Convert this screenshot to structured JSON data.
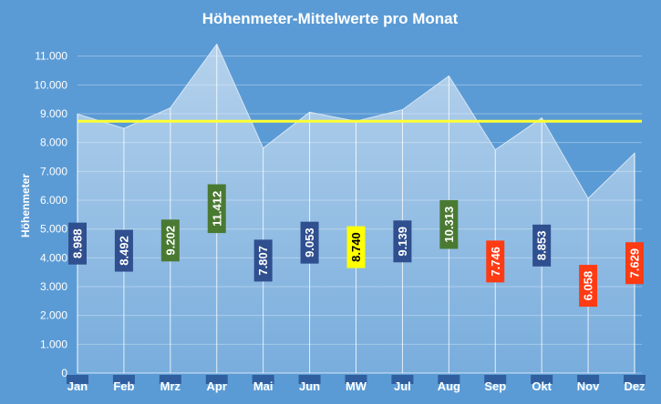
{
  "chart_data": {
    "type": "area",
    "title": "Höhenmeter-Mittelwerte pro Monat",
    "xlabel": "",
    "ylabel": "Höhenmeter",
    "ylim": [
      0,
      12000
    ],
    "yticks": [
      0,
      1000,
      2000,
      3000,
      4000,
      5000,
      6000,
      7000,
      8000,
      9000,
      10000,
      11000
    ],
    "ytick_labels": [
      "0",
      "1.000",
      "2.000",
      "3.000",
      "4.000",
      "5.000",
      "6.000",
      "7.000",
      "8.000",
      "9.000",
      "10.000",
      "11.000"
    ],
    "categories": [
      "Jan",
      "Feb",
      "Mrz",
      "Apr",
      "Mai",
      "Jun",
      "MW",
      "Jul",
      "Aug",
      "Sep",
      "Okt",
      "Nov",
      "Dez"
    ],
    "values": [
      8988,
      8492,
      9202,
      11412,
      7807,
      9053,
      8740,
      9139,
      10313,
      7746,
      8853,
      6058,
      7629
    ],
    "data_labels": [
      "8.988",
      "8.492",
      "9.202",
      "11.412",
      "7.807",
      "9.053",
      "8.740",
      "9.139",
      "10.313",
      "7.746",
      "8.853",
      "6.058",
      "7.629"
    ],
    "label_colors": [
      "#2f4f8f",
      "#2f4f8f",
      "#4a7a32",
      "#4a7a32",
      "#2f4f8f",
      "#2f4f8f",
      "#ffff00",
      "#2f4f8f",
      "#4a7a32",
      "#ff3b14",
      "#2f4f8f",
      "#ff3b14",
      "#ff3b14"
    ],
    "label_text_colors": [
      "#ffffff",
      "#ffffff",
      "#ffffff",
      "#ffffff",
      "#ffffff",
      "#ffffff",
      "#000000",
      "#ffffff",
      "#ffffff",
      "#ffffff",
      "#ffffff",
      "#ffffff",
      "#ffffff"
    ],
    "mean_line_value": 8740,
    "mean_line_color": "#ffff33",
    "background_color": "#5b9bd5",
    "area_color": "#ffffff",
    "grid": true,
    "legend": "none"
  }
}
